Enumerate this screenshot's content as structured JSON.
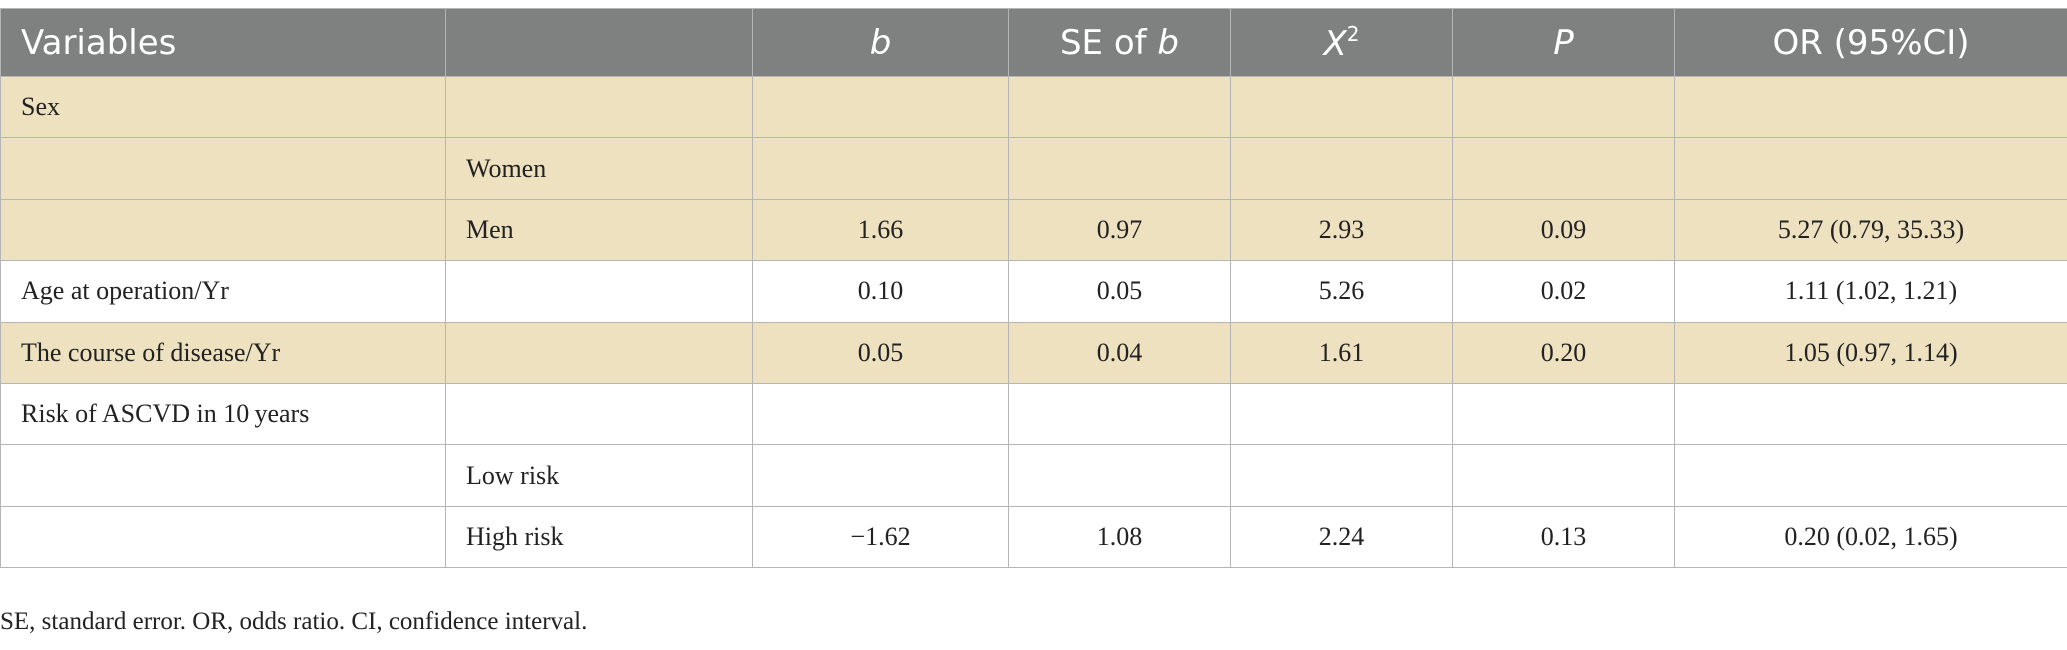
{
  "table": {
    "headers": {
      "variables": "Variables",
      "subgroup": "",
      "b": "b",
      "se_prefix": "SE of ",
      "se_b": "b",
      "x2_base": "X",
      "x2_sup": "2",
      "p": "P",
      "or": "OR (95%CI)"
    },
    "rows": [
      {
        "variable": "Sex",
        "subgroup": "",
        "b": "",
        "se": "",
        "x2": "",
        "p": "",
        "or": "",
        "shaded": true
      },
      {
        "variable": "",
        "subgroup": "Women",
        "b": "",
        "se": "",
        "x2": "",
        "p": "",
        "or": "",
        "shaded": true
      },
      {
        "variable": "",
        "subgroup": "Men",
        "b": "1.66",
        "se": "0.97",
        "x2": "2.93",
        "p": "0.09",
        "or": "5.27 (0.79, 35.33)",
        "shaded": true
      },
      {
        "variable": "Age at operation/Yr",
        "subgroup": "",
        "b": "0.10",
        "se": "0.05",
        "x2": "5.26",
        "p": "0.02",
        "or": "1.11 (1.02, 1.21)",
        "shaded": false
      },
      {
        "variable": "The course of disease/Yr",
        "subgroup": "",
        "b": "0.05",
        "se": "0.04",
        "x2": "1.61",
        "p": "0.20",
        "or": "1.05 (0.97, 1.14)",
        "shaded": true
      },
      {
        "variable": "Risk of ASCVD in 10 years",
        "subgroup": "",
        "b": "",
        "se": "",
        "x2": "",
        "p": "",
        "or": "",
        "shaded": false
      },
      {
        "variable": "",
        "subgroup": "Low risk",
        "b": "",
        "se": "",
        "x2": "",
        "p": "",
        "or": "",
        "shaded": false
      },
      {
        "variable": "",
        "subgroup": "High risk",
        "b": "−1.62",
        "se": "1.08",
        "x2": "2.24",
        "p": "0.13",
        "or": "0.20 (0.02, 1.65)",
        "shaded": false
      }
    ]
  },
  "footnote": "SE, standard error. OR, odds ratio. CI, confidence interval.",
  "colors": {
    "header_bg": "#7f8180",
    "header_text": "#ffffff",
    "shaded_row": "#ede1bf",
    "border": "#b5b5b5"
  }
}
